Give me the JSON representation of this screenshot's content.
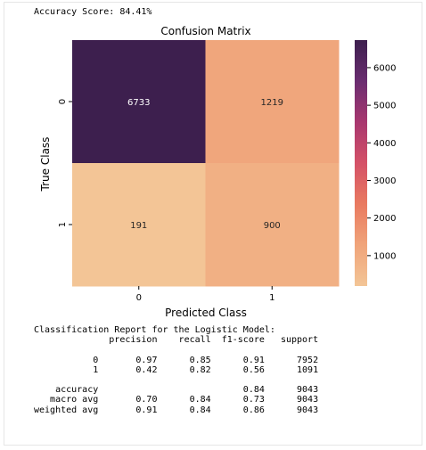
{
  "accuracy_text": "Accuracy Score: 84.41%",
  "chart_data": {
    "type": "heatmap",
    "title": "Confusion Matrix",
    "xlabel": "Predicted Class",
    "ylabel": "True Class",
    "x_categories": [
      "0",
      "1"
    ],
    "y_categories": [
      "0",
      "1"
    ],
    "values": [
      [
        6733,
        1219
      ],
      [
        191,
        900
      ]
    ],
    "colorbar": {
      "ticks": [
        1000,
        2000,
        3000,
        4000,
        5000,
        6000
      ],
      "vmin": 191,
      "vmax": 6733
    },
    "colormap": [
      "#f3c596",
      "#f0a47a",
      "#e97a60",
      "#d45167",
      "#a8376f",
      "#6a2d70",
      "#3d1f4e"
    ],
    "annotation_colors": {
      "light": "#ffffff",
      "dark": "#262626"
    }
  },
  "report": {
    "title": "Classification Report for the Logistic Model:",
    "header": "              precision    recall  f1-score   support",
    "rows": [
      "           0       0.97      0.85      0.91      7952",
      "           1       0.42      0.82      0.56      1091",
      "",
      "    accuracy                           0.84      9043",
      "   macro avg       0.70      0.84      0.73      9043",
      "weighted avg       0.91      0.84      0.86      9043"
    ]
  }
}
